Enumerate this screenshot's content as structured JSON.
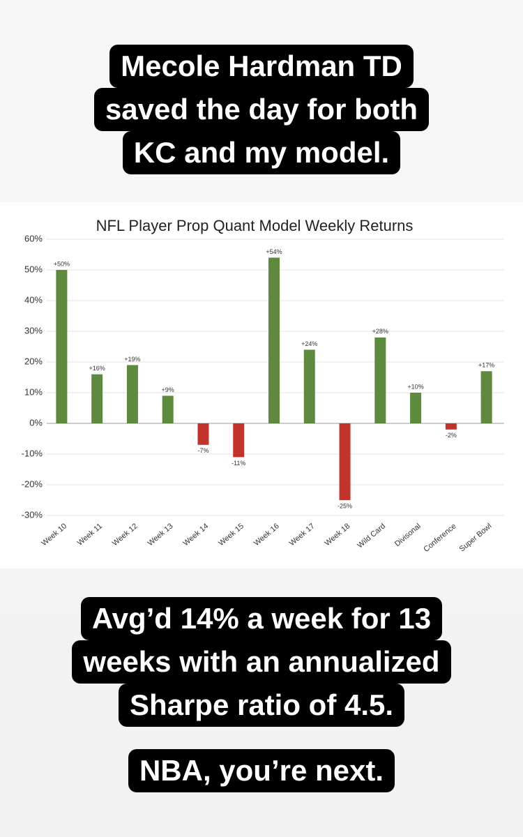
{
  "captions": [
    {
      "lines": [
        "Mecole Hardman TD",
        "saved the day for both",
        "KC and my model."
      ]
    },
    {
      "lines": [
        "Avg’d 14% a week for 13",
        "weeks with an annualized",
        "Sharpe ratio of 4.5."
      ]
    },
    {
      "lines": [
        "NBA, you’re next."
      ]
    }
  ],
  "chart_data": {
    "type": "bar",
    "title": "NFL Player Prop Quant Model Weekly Returns",
    "categories": [
      "Week 10",
      "Week 11",
      "Week 12",
      "Week 13",
      "Week 14",
      "Week 15",
      "Week 16",
      "Week 17",
      "Week 18",
      "Wild Card",
      "Divisonal",
      "Conference",
      "Super Bowl"
    ],
    "values": [
      50,
      16,
      19,
      9,
      -7,
      -11,
      54,
      24,
      -25,
      28,
      10,
      -2,
      17
    ],
    "value_labels": [
      "+50%",
      "+16%",
      "+19%",
      "+9%",
      "-7%",
      "-11%",
      "+54%",
      "+24%",
      "-25%",
      "+28%",
      "+10%",
      "-2%",
      "+17%"
    ],
    "positive_color": "#5e8a3e",
    "negative_color": "#c2342b",
    "ylim": [
      -30,
      60
    ],
    "yticks": [
      {
        "value": -30,
        "label": "-30%"
      },
      {
        "value": -20,
        "label": "-20%"
      },
      {
        "value": -10,
        "label": "-10%"
      },
      {
        "value": 0,
        "label": "0%"
      },
      {
        "value": 10,
        "label": "10%"
      },
      {
        "value": 20,
        "label": "20%"
      },
      {
        "value": 30,
        "label": "30%"
      },
      {
        "value": 40,
        "label": "40%"
      },
      {
        "value": 50,
        "label": "50%"
      },
      {
        "value": 60,
        "label": "60%"
      }
    ],
    "grid": true
  }
}
